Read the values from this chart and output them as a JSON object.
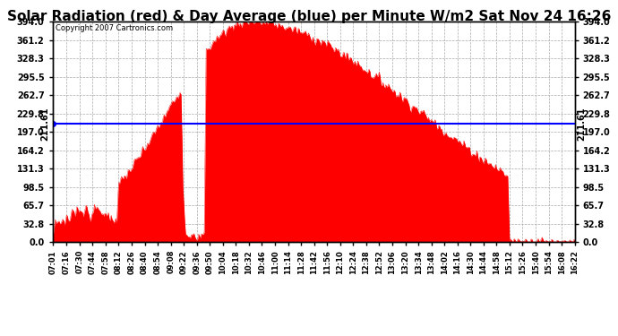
{
  "title": "Solar Radiation (red) & Day Average (blue) per Minute W/m2 Sat Nov 24 16:26",
  "copyright_text": "Copyright 2007 Cartronics.com",
  "y_max": 394.0,
  "y_min": 0.0,
  "y_ticks": [
    0.0,
    32.8,
    65.7,
    98.5,
    131.3,
    164.2,
    197.0,
    229.8,
    262.7,
    295.5,
    328.3,
    361.2,
    394.0
  ],
  "avg_line_y": 211.61,
  "avg_line_label": "211.61",
  "fill_color": "#ff0000",
  "line_color": "#0000ff",
  "bg_color": "#ffffff",
  "grid_color": "#aaaaaa",
  "title_fontsize": 11,
  "x_tick_times": [
    "07:01",
    "07:16",
    "07:30",
    "07:44",
    "07:58",
    "08:12",
    "08:26",
    "08:40",
    "08:54",
    "09:08",
    "09:22",
    "09:36",
    "09:50",
    "10:04",
    "10:18",
    "10:32",
    "10:46",
    "11:00",
    "11:14",
    "11:28",
    "11:42",
    "11:56",
    "12:10",
    "12:24",
    "12:38",
    "12:52",
    "13:06",
    "13:20",
    "13:34",
    "13:48",
    "14:02",
    "14:16",
    "14:30",
    "14:44",
    "14:58",
    "15:12",
    "15:26",
    "15:40",
    "15:54",
    "16:08",
    "16:22"
  ]
}
